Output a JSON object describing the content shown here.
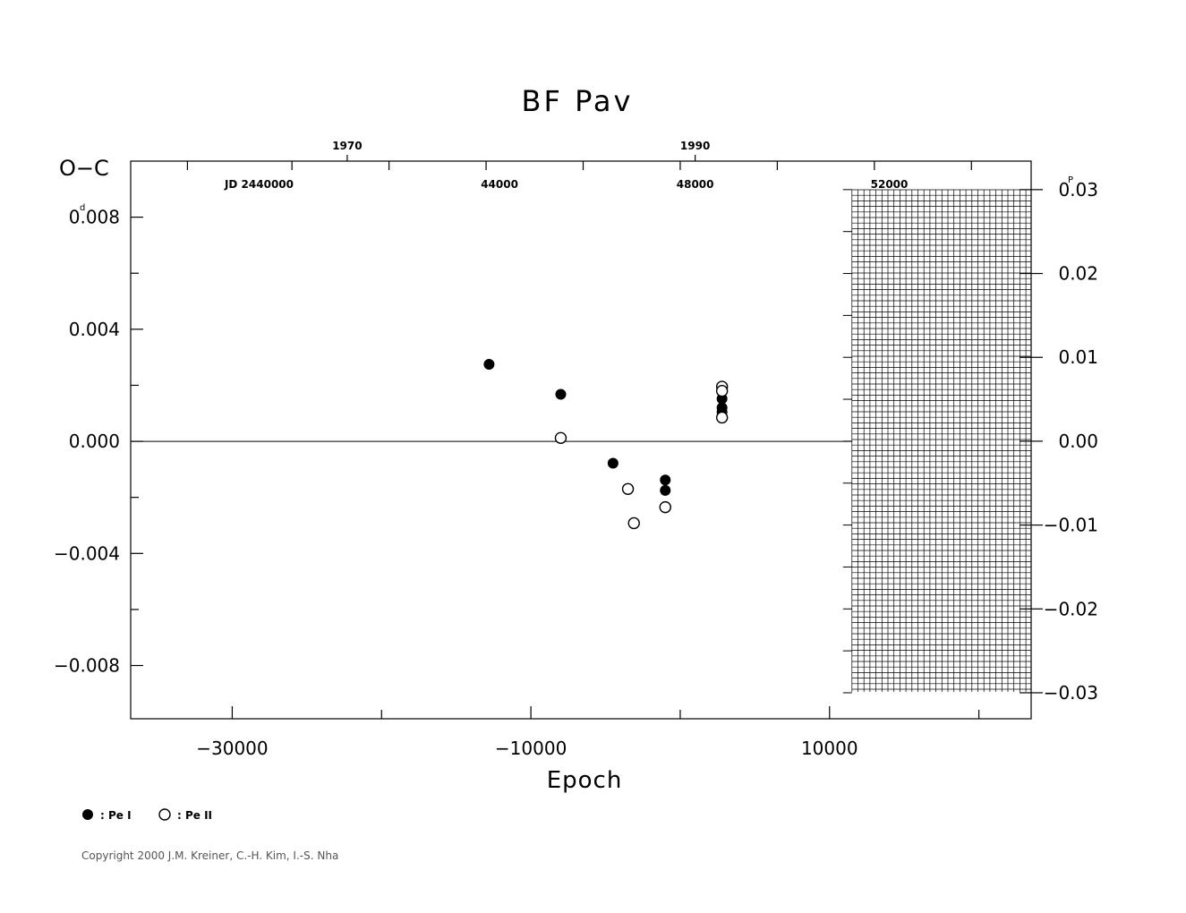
{
  "chart_data": {
    "type": "scatter",
    "title": "BF Pav",
    "xlabel": "Epoch",
    "ylabel": "O−C",
    "ylabel_unit": "d",
    "y2label_unit": "P",
    "xlim": [
      -36800,
      23500
    ],
    "ylim": [
      -0.0099,
      0.01
    ],
    "y2lim": [
      -0.0331,
      0.0334
    ],
    "x_ticks": [
      -30000,
      -10000,
      10000
    ],
    "x_tick_labels": [
      "−30000",
      "−10000",
      "10000"
    ],
    "y_ticks": [
      0.008,
      0.004,
      0.0,
      -0.004,
      -0.008
    ],
    "y_tick_labels": [
      "0.008",
      "0.004",
      "0.000",
      "−0.004",
      "−0.008"
    ],
    "y2_ticks": [
      0.03,
      0.02,
      0.01,
      0.0,
      -0.01,
      -0.02,
      -0.03
    ],
    "y2_tick_labels": [
      "0.03",
      "0.02",
      "0.01",
      "0.00",
      "−0.01",
      "−0.02",
      "−0.03"
    ],
    "top_year_labels": [
      {
        "x": -22300,
        "label": "1970"
      },
      {
        "x": 1000,
        "label": "1990"
      }
    ],
    "top_jd_labels": [
      {
        "x": -28200,
        "label": "JD  2440000"
      },
      {
        "x": -12100,
        "label": "44000"
      },
      {
        "x": 1000,
        "label": "48000"
      },
      {
        "x": 14000,
        "label": "52000"
      }
    ],
    "series": [
      {
        "name": ": Pe I",
        "filled": true,
        "points": [
          [
            -12800,
            0.00275
          ],
          [
            -8000,
            0.00168
          ],
          [
            -4500,
            -0.00078
          ],
          [
            -1000,
            -0.00138
          ],
          [
            -1000,
            -0.00175
          ],
          [
            2800,
            0.00152
          ],
          [
            2800,
            0.0012
          ],
          [
            2800,
            0.00105
          ]
        ]
      },
      {
        "name": ": Pe II",
        "filled": false,
        "points": [
          [
            -8000,
            0.00012
          ],
          [
            -3500,
            -0.0017
          ],
          [
            -3100,
            -0.00292
          ],
          [
            -1000,
            -0.00235
          ],
          [
            2800,
            0.00195
          ],
          [
            2800,
            0.0018
          ],
          [
            2800,
            0.00085
          ]
        ]
      }
    ],
    "hatched_region_x_from": 11500
  },
  "copyright": "Copyright 2000 J.M. Kreiner, C.-H. Kim, I.-S. Nha"
}
